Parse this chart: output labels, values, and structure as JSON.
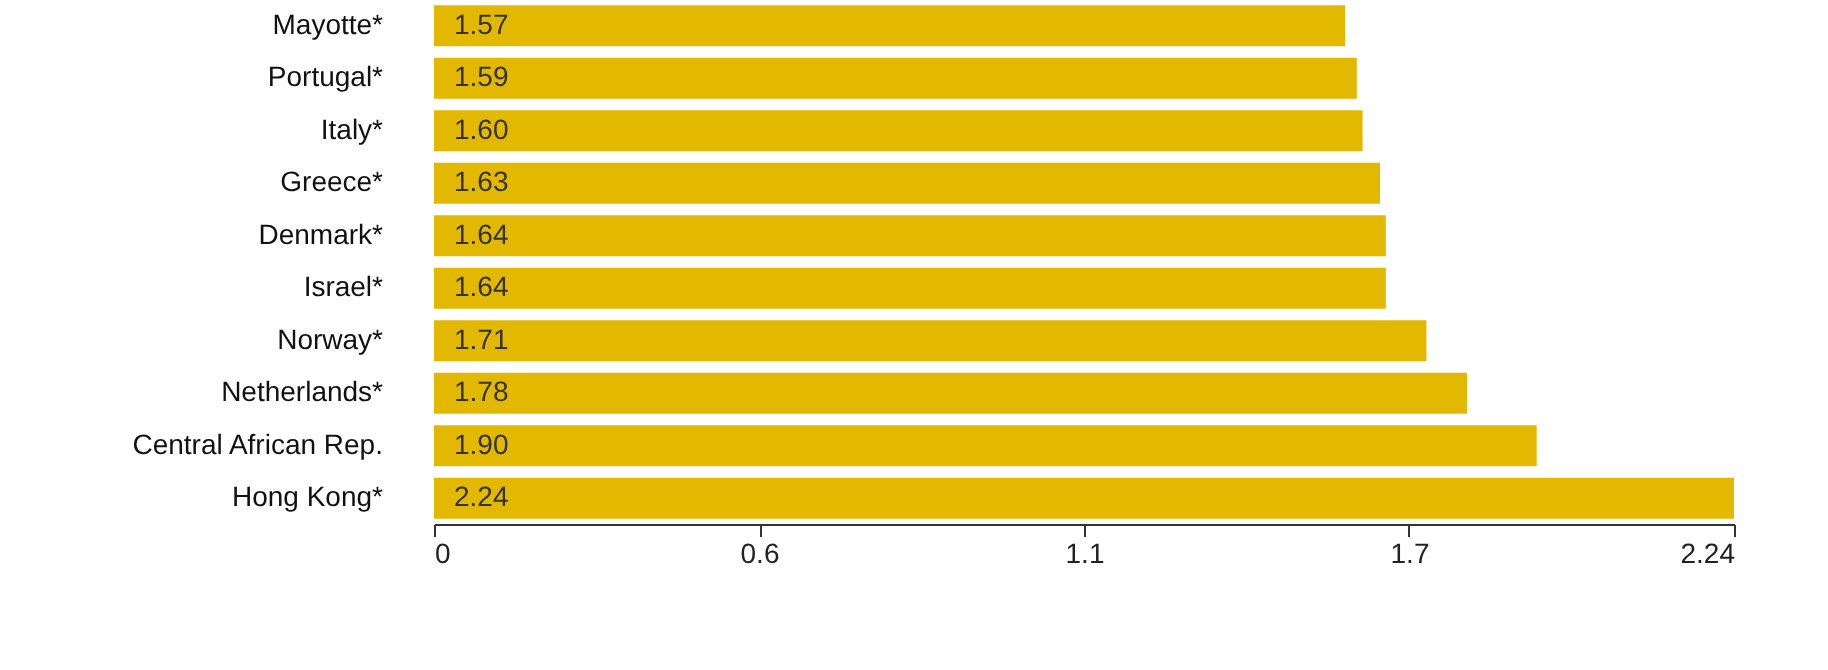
{
  "chart_data": {
    "type": "bar",
    "orientation": "horizontal",
    "categories": [
      "Mayotte*",
      "Portugal*",
      "Italy*",
      "Greece*",
      "Denmark*",
      "Israel*",
      "Norway*",
      "Netherlands*",
      "Central African Rep.",
      "Hong Kong*"
    ],
    "values": [
      1.57,
      1.59,
      1.6,
      1.63,
      1.64,
      1.64,
      1.71,
      1.78,
      1.9,
      2.24
    ],
    "value_labels": [
      "1.57",
      "1.59",
      "1.60",
      "1.63",
      "1.64",
      "1.64",
      "1.71",
      "1.78",
      "1.90",
      "2.24"
    ],
    "color": "#e2b900",
    "xlim": [
      0,
      2.24
    ],
    "xticks": [
      0,
      {
        "value": 0.56,
        "label": "0.6"
      },
      {
        "value": 1.12,
        "label": "1.1"
      },
      {
        "value": 1.68,
        "label": "1.7"
      },
      2.24
    ],
    "grid": false
  }
}
